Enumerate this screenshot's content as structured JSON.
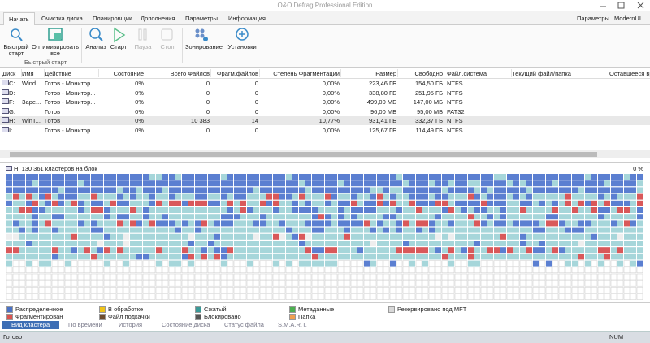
{
  "window": {
    "title": "O&O Defrag Professional Edition"
  },
  "tabs": [
    "Начать",
    "Очистка диска",
    "Планировщик",
    "Дополнения",
    "Параметры",
    "Информация"
  ],
  "top_right": [
    "Параметры",
    "ModernUI"
  ],
  "ribbon": {
    "group_label": "Быстрый старт",
    "buttons": [
      "Быстрый старт",
      "Оптимизировать все",
      "Анализ",
      "Старт",
      "Пауза",
      "Стоп",
      "Зонирование",
      "Установки"
    ]
  },
  "table": {
    "columns": [
      "Диск",
      "Имя",
      "Действие",
      "Состояние",
      "Всего Файлов",
      "Фрагм.файлов",
      "Степень Фрагментации",
      "Размер",
      "Свободно",
      "Файл.система",
      "Текущий файл/папка",
      "Оставшееся вр"
    ],
    "rows": [
      [
        "C:",
        "Wind...",
        "Готов - Монитор...",
        "0%",
        "0",
        "0",
        "0,00%",
        "223,46 ГБ",
        "154,50 ГБ",
        "NTFS",
        "",
        ""
      ],
      [
        "D:",
        "",
        "Готов - Монитор...",
        "0%",
        "0",
        "0",
        "0,00%",
        "338,80 ГБ",
        "251,95 ГБ",
        "NTFS",
        "",
        ""
      ],
      [
        "F:",
        "Заре...",
        "Готов - Монитор...",
        "0%",
        "0",
        "0",
        "0,00%",
        "499,00 МБ",
        "147,00 МБ",
        "NTFS",
        "",
        ""
      ],
      [
        "G:",
        "",
        "Готов",
        "0%",
        "0",
        "0",
        "0,00%",
        "96,00 МБ",
        "95,00 МБ",
        "FAT32",
        "",
        ""
      ],
      [
        "H:",
        "WinT...",
        "Готов",
        "0%",
        "10 383",
        "14",
        "10,77%",
        "931,41 ГБ",
        "332,37 ГБ",
        "NTFS",
        "",
        ""
      ],
      [
        "I:",
        "",
        "Готов - Монитор...",
        "0%",
        "0",
        "0",
        "0,00%",
        "125,67 ГБ",
        "114,49 ГБ",
        "NTFS",
        "",
        ""
      ]
    ]
  },
  "cluster_map": {
    "label": "H: 130 361 кластеров на блок",
    "percent": "0 %"
  },
  "legend": [
    {
      "label": "Распределенное",
      "color": "#4a72c6"
    },
    {
      "label": "В обработке",
      "color": "#f0c419"
    },
    {
      "label": "Сжатый",
      "color": "#3a9a98"
    },
    {
      "label": "Метаданные",
      "color": "#4caf50"
    },
    {
      "label": "Резервировано под MFT",
      "color": "#d8d8d8"
    },
    {
      "label": "Фрагментирован",
      "color": "#d9534f"
    },
    {
      "label": "Файл подкачки",
      "color": "#6d4c2f"
    },
    {
      "label": "Блокировано",
      "color": "#555555"
    },
    {
      "label": "Папка",
      "color": "#f0a050"
    }
  ],
  "bottom_tabs": [
    "Вид кластера",
    "По времени",
    "История",
    "Состояние диска",
    "Статус файла",
    "S.M.A.R.T."
  ],
  "status": {
    "left": "Готово",
    "right": "NUM"
  }
}
